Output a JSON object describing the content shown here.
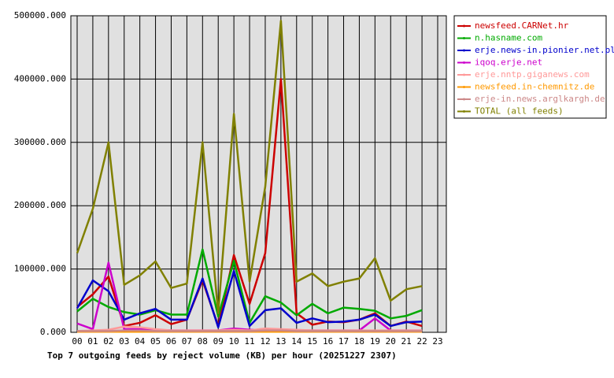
{
  "chart_data": {
    "type": "line",
    "title": "Top 7 outgoing feeds by reject volume (KB) per hour (20251227 2307)",
    "categories": [
      "00",
      "01",
      "02",
      "03",
      "04",
      "05",
      "06",
      "07",
      "08",
      "09",
      "10",
      "11",
      "12",
      "13",
      "14",
      "15",
      "16",
      "17",
      "18",
      "19",
      "20",
      "21",
      "22",
      "23"
    ],
    "ylim": [
      0,
      500000
    ],
    "yticks": [
      {
        "value": 0,
        "label": "0.000"
      },
      {
        "value": 100000,
        "label": "100000.000"
      },
      {
        "value": 200000,
        "label": "200000.000"
      },
      {
        "value": 300000,
        "label": "300000.000"
      },
      {
        "value": 400000,
        "label": "400000.000"
      },
      {
        "value": 500000,
        "label": "500000.000"
      }
    ],
    "grid": true,
    "legend": "right",
    "series": [
      {
        "name": "newsfeed.CARNet.hr",
        "color": "#cc0000",
        "values": [
          40000,
          60000,
          88000,
          10000,
          15000,
          27000,
          13000,
          20000,
          82000,
          10000,
          122000,
          45000,
          125000,
          400000,
          30000,
          12000,
          17000,
          16000,
          20000,
          30000,
          10000,
          17000,
          10000,
          null
        ]
      },
      {
        "name": "n.hasname.com",
        "color": "#00aa00",
        "values": [
          33000,
          53000,
          40000,
          32000,
          28000,
          35000,
          28000,
          28000,
          131000,
          25000,
          113000,
          15000,
          57000,
          47000,
          27000,
          45000,
          30000,
          39000,
          37000,
          34000,
          22000,
          26000,
          35000,
          null
        ]
      },
      {
        "name": "erje.news-in.pionier.net.pl",
        "color": "#0000cc",
        "values": [
          38000,
          82000,
          65000,
          20000,
          30000,
          37000,
          20000,
          20000,
          85000,
          8000,
          97000,
          10000,
          35000,
          38000,
          15000,
          22000,
          16000,
          17000,
          20000,
          28000,
          10000,
          16000,
          17000,
          null
        ]
      },
      {
        "name": "iqoq.erje.net",
        "color": "#cc00cc",
        "values": [
          14000,
          5000,
          110000,
          5000,
          5000,
          4000,
          3000,
          3000,
          3000,
          3000,
          6000,
          4000,
          3000,
          3000,
          3000,
          3000,
          3000,
          3000,
          3000,
          22000,
          3000,
          3000,
          3000,
          null
        ]
      },
      {
        "name": "erje.nntp.giganews.com",
        "color": "#ff9999",
        "values": [
          2000,
          3000,
          4000,
          9000,
          8000,
          5000,
          3000,
          3000,
          3000,
          3000,
          4000,
          3000,
          6000,
          5000,
          4000,
          3000,
          3000,
          3000,
          3000,
          3000,
          3000,
          3000,
          3000,
          null
        ]
      },
      {
        "name": "newsfeed.in-chemnitz.de",
        "color": "#ff9900",
        "values": [
          1000,
          1000,
          1000,
          1000,
          1000,
          1000,
          1000,
          1000,
          1000,
          1000,
          1000,
          1000,
          1000,
          1000,
          1000,
          1000,
          1000,
          1000,
          1000,
          1000,
          1000,
          1000,
          1000,
          null
        ]
      },
      {
        "name": "erje-in.news.arglkargh.de",
        "color": "#cc8888",
        "values": [
          2000,
          2000,
          2000,
          3000,
          3000,
          2000,
          2000,
          2000,
          2000,
          2000,
          2000,
          2000,
          3000,
          3000,
          2000,
          2000,
          2000,
          2000,
          2000,
          2000,
          2000,
          2000,
          2000,
          null
        ]
      },
      {
        "name": "TOTAL (all feeds)",
        "color": "#808000",
        "values": [
          125000,
          195000,
          300000,
          75000,
          90000,
          112000,
          70000,
          77000,
          300000,
          30000,
          345000,
          80000,
          230000,
          492000,
          80000,
          93000,
          73000,
          80000,
          85000,
          117000,
          50000,
          68000,
          73000,
          null
        ]
      }
    ]
  }
}
